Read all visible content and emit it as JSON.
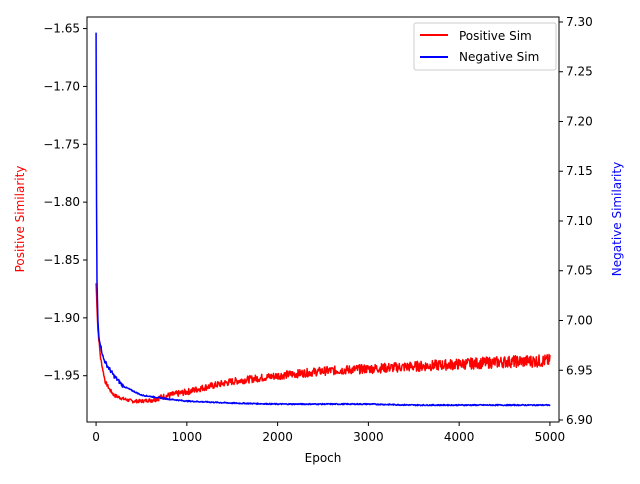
{
  "chart_data": {
    "type": "line",
    "title": "",
    "xlabel": "Epoch",
    "ylabel_left": "Positive Similarity",
    "ylabel_right": "Negative Similarity",
    "xlim": [
      -100,
      5100
    ],
    "ylim_left": [
      -1.99,
      -1.64
    ],
    "ylim_right": [
      6.898,
      7.305
    ],
    "x_ticks": [
      0,
      1000,
      2000,
      3000,
      4000,
      5000
    ],
    "x_tick_labels": [
      "0",
      "1000",
      "2000",
      "3000",
      "4000",
      "5000"
    ],
    "y_left_ticks": [
      -1.65,
      -1.7,
      -1.75,
      -1.8,
      -1.85,
      -1.9,
      -1.95
    ],
    "y_left_tick_labels": [
      "−1.65",
      "−1.70",
      "−1.75",
      "−1.80",
      "−1.85",
      "−1.90",
      "−1.95"
    ],
    "y_right_ticks": [
      7.3,
      7.25,
      7.2,
      7.15,
      7.1,
      7.05,
      7.0,
      6.95,
      6.9
    ],
    "y_right_tick_labels": [
      "7.30",
      "7.25",
      "7.20",
      "7.15",
      "7.10",
      "7.05",
      "7.00",
      "6.95",
      "6.90"
    ],
    "grid": false,
    "legend_position": "top-right",
    "series": [
      {
        "name": "Positive Sim",
        "axis": "left",
        "color": "#ff0000",
        "x": [
          0,
          20,
          50,
          100,
          150,
          200,
          300,
          400,
          500,
          600,
          700,
          800,
          1000,
          1200,
          1500,
          2000,
          2500,
          3000,
          3500,
          4000,
          4500,
          5000
        ],
        "values": [
          -1.87,
          -1.91,
          -1.935,
          -1.955,
          -1.962,
          -1.967,
          -1.97,
          -1.972,
          -1.972,
          -1.971,
          -1.969,
          -1.967,
          -1.964,
          -1.96,
          -1.955,
          -1.95,
          -1.946,
          -1.944,
          -1.942,
          -1.94,
          -1.938,
          -1.937
        ]
      },
      {
        "name": "Negative Sim",
        "axis": "right",
        "color": "#0000ff",
        "x": [
          0,
          5,
          10,
          20,
          30,
          50,
          80,
          120,
          200,
          300,
          500,
          800,
          1000,
          1500,
          2000,
          2500,
          3000,
          3500,
          4000,
          4500,
          5000
        ],
        "values": [
          7.29,
          7.12,
          7.04,
          7.0,
          6.985,
          6.975,
          6.962,
          6.955,
          6.944,
          6.934,
          6.925,
          6.921,
          6.919,
          6.917,
          6.916,
          6.916,
          6.916,
          6.915,
          6.915,
          6.915,
          6.915
        ]
      }
    ]
  }
}
